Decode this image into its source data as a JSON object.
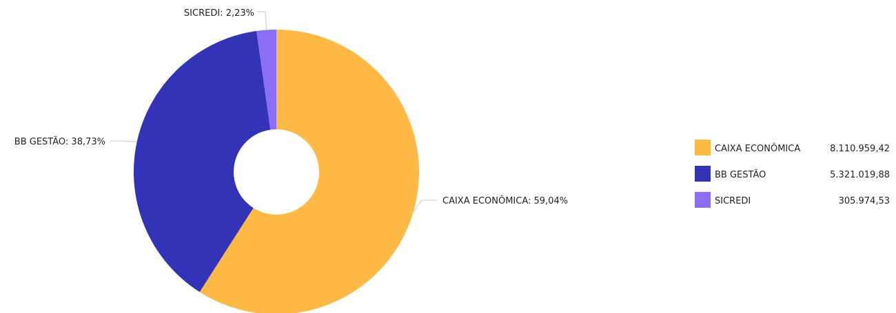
{
  "chart_data": {
    "type": "pie",
    "style": "donut",
    "slices": [
      {
        "name": "CAIXA ECONÔMICA",
        "value": 8110959.42,
        "value_label": "8.110.959,42",
        "percent_label": "59,04%",
        "color": "#ffb944"
      },
      {
        "name": "BB GESTÃO",
        "value": 5321019.88,
        "value_label": "5.321.019,88",
        "percent_label": "38,73%",
        "color": "#3333b8"
      },
      {
        "name": "SICREDI",
        "value": 305974.53,
        "value_label": "305.974,53",
        "percent_label": "2,23%",
        "color": "#8a6ff5"
      }
    ],
    "legend_position": "right",
    "leader_line_color": "#c8c8c8"
  }
}
